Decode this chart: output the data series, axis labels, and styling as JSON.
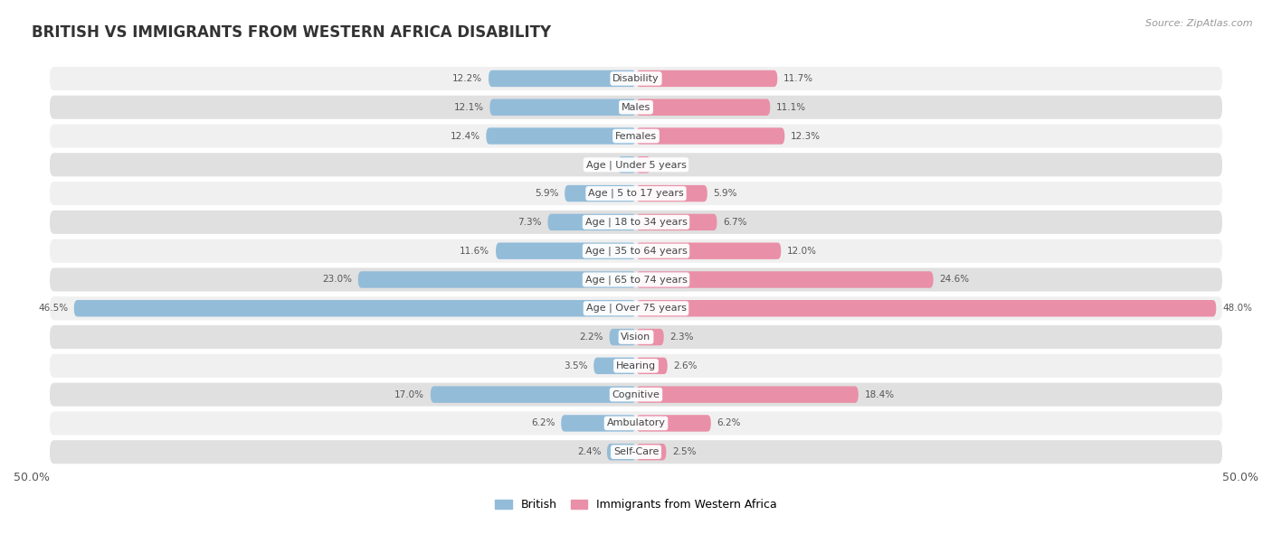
{
  "title": "BRITISH VS IMMIGRANTS FROM WESTERN AFRICA DISABILITY",
  "source": "Source: ZipAtlas.com",
  "categories": [
    "Disability",
    "Males",
    "Females",
    "Age | Under 5 years",
    "Age | 5 to 17 years",
    "Age | 18 to 34 years",
    "Age | 35 to 64 years",
    "Age | 65 to 74 years",
    "Age | Over 75 years",
    "Vision",
    "Hearing",
    "Cognitive",
    "Ambulatory",
    "Self-Care"
  ],
  "british_values": [
    12.2,
    12.1,
    12.4,
    1.5,
    5.9,
    7.3,
    11.6,
    23.0,
    46.5,
    2.2,
    3.5,
    17.0,
    6.2,
    2.4
  ],
  "immigrant_values": [
    11.7,
    11.1,
    12.3,
    1.2,
    5.9,
    6.7,
    12.0,
    24.6,
    48.0,
    2.3,
    2.6,
    18.4,
    6.2,
    2.5
  ],
  "british_color": "#93bcd9",
  "immigrant_color": "#e990a8",
  "legend_british": "British",
  "legend_immigrant": "Immigrants from Western Africa",
  "max_val": 50.0,
  "row_bg_light": "#f0f0f0",
  "row_bg_dark": "#e0e0e0",
  "bar_height": 0.58,
  "title_fontsize": 12,
  "label_fontsize": 8.0,
  "value_fontsize": 7.5,
  "axis_tick_fontsize": 9.0
}
